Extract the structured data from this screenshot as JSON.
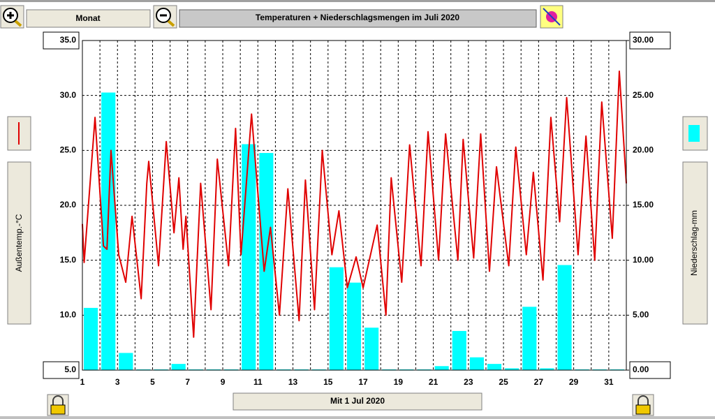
{
  "toolbar": {
    "period_button": "Monat"
  },
  "footer": {
    "date_button": "Mit 1 Jul 2020"
  },
  "chart_data": {
    "type": "combo",
    "title": "Temperaturen + Niederschlagsmengen im Juli 2020",
    "xlim": [
      1,
      32
    ],
    "xticks": [
      1,
      3,
      5,
      7,
      9,
      11,
      13,
      15,
      17,
      19,
      21,
      23,
      25,
      27,
      29,
      31
    ],
    "xminorticks": [
      2,
      4,
      6,
      8,
      10,
      12,
      14,
      16,
      18,
      20,
      22,
      24,
      26,
      28,
      30,
      32
    ],
    "ylim": [
      5,
      35
    ],
    "yticks": [
      {
        "value": 5,
        "label": "5.0"
      },
      {
        "value": 10,
        "label": "10.0"
      },
      {
        "value": 15,
        "label": "15.0"
      },
      {
        "value": 20,
        "label": "20.0"
      },
      {
        "value": 25,
        "label": "25.0"
      },
      {
        "value": 30,
        "label": "30.0"
      },
      {
        "value": 35,
        "label": "35.0"
      }
    ],
    "y2lim": [
      0,
      30
    ],
    "y2ticks": [
      {
        "value": 0,
        "label": "0.00"
      },
      {
        "value": 5,
        "label": "5.00"
      },
      {
        "value": 10,
        "label": "10.00"
      },
      {
        "value": 15,
        "label": "15.00"
      },
      {
        "value": 20,
        "label": "20.00"
      },
      {
        "value": 25,
        "label": "25.00"
      },
      {
        "value": 30,
        "label": "30.00"
      }
    ],
    "grid": true,
    "series": [
      {
        "name": "Außentemp.-°C",
        "type": "line",
        "color": "#e00000",
        "x": [
          1.0,
          1.1,
          1.72,
          2.2,
          2.4,
          2.63,
          3.07,
          3.47,
          3.83,
          4.35,
          4.67,
          4.78,
          5.34,
          5.78,
          6.22,
          6.5,
          6.74,
          6.9,
          7.34,
          7.74,
          8.33,
          8.69,
          9.33,
          9.73,
          10.04,
          10.64,
          11.36,
          11.72,
          12.23,
          12.71,
          13.35,
          13.71,
          14.23,
          14.67,
          15.22,
          15.62,
          16.1,
          16.6,
          17.0,
          17.8,
          18.3,
          18.6,
          19.2,
          19.65,
          20.3,
          20.7,
          21.3,
          21.7,
          22.4,
          22.7,
          23.3,
          23.7,
          24.2,
          24.6,
          25.3,
          25.7,
          26.3,
          26.7,
          27.25,
          27.7,
          28.2,
          28.6,
          29.25,
          29.7,
          30.2,
          30.6,
          31.2,
          31.6,
          32.0
        ],
        "values": [
          18.3,
          14.8,
          28,
          16.3,
          16,
          25,
          15.5,
          13,
          19,
          11.5,
          22,
          24,
          14.5,
          25.8,
          17.5,
          22.5,
          16,
          19,
          8,
          22,
          10.5,
          24.2,
          14.5,
          27,
          15.5,
          28.3,
          14,
          18,
          10,
          21.5,
          9.5,
          22.3,
          10.5,
          25,
          15.5,
          19.5,
          12.5,
          15.3,
          12.5,
          18.2,
          10,
          22.5,
          13,
          25.5,
          14.5,
          26.7,
          15,
          26.5,
          15,
          26,
          15.2,
          26.5,
          14,
          23.5,
          14.5,
          25.3,
          15.5,
          23,
          13.2,
          28,
          18.5,
          29.8,
          15.5,
          26.3,
          15,
          29.4,
          17,
          32.2,
          22
        ]
      },
      {
        "name": "Niederschlag-mm",
        "type": "bar",
        "axis": "y2",
        "color": "#00ffff",
        "x": [
          1,
          2,
          3,
          4,
          5,
          6,
          7,
          8,
          9,
          10,
          11,
          12,
          13,
          14,
          15,
          16,
          17,
          18,
          19,
          20,
          21,
          22,
          23,
          24,
          25,
          26,
          27,
          28,
          29,
          30,
          31
        ],
        "values": [
          5.6,
          25.2,
          1.5,
          0,
          0,
          0.5,
          0,
          0,
          0,
          20.5,
          19.7,
          0,
          0,
          0,
          9.3,
          7.9,
          3.8,
          0,
          0,
          0,
          0.3,
          3.5,
          1.1,
          0.5,
          0.1,
          5.7,
          0.1,
          9.5,
          0,
          0,
          0
        ]
      }
    ]
  }
}
